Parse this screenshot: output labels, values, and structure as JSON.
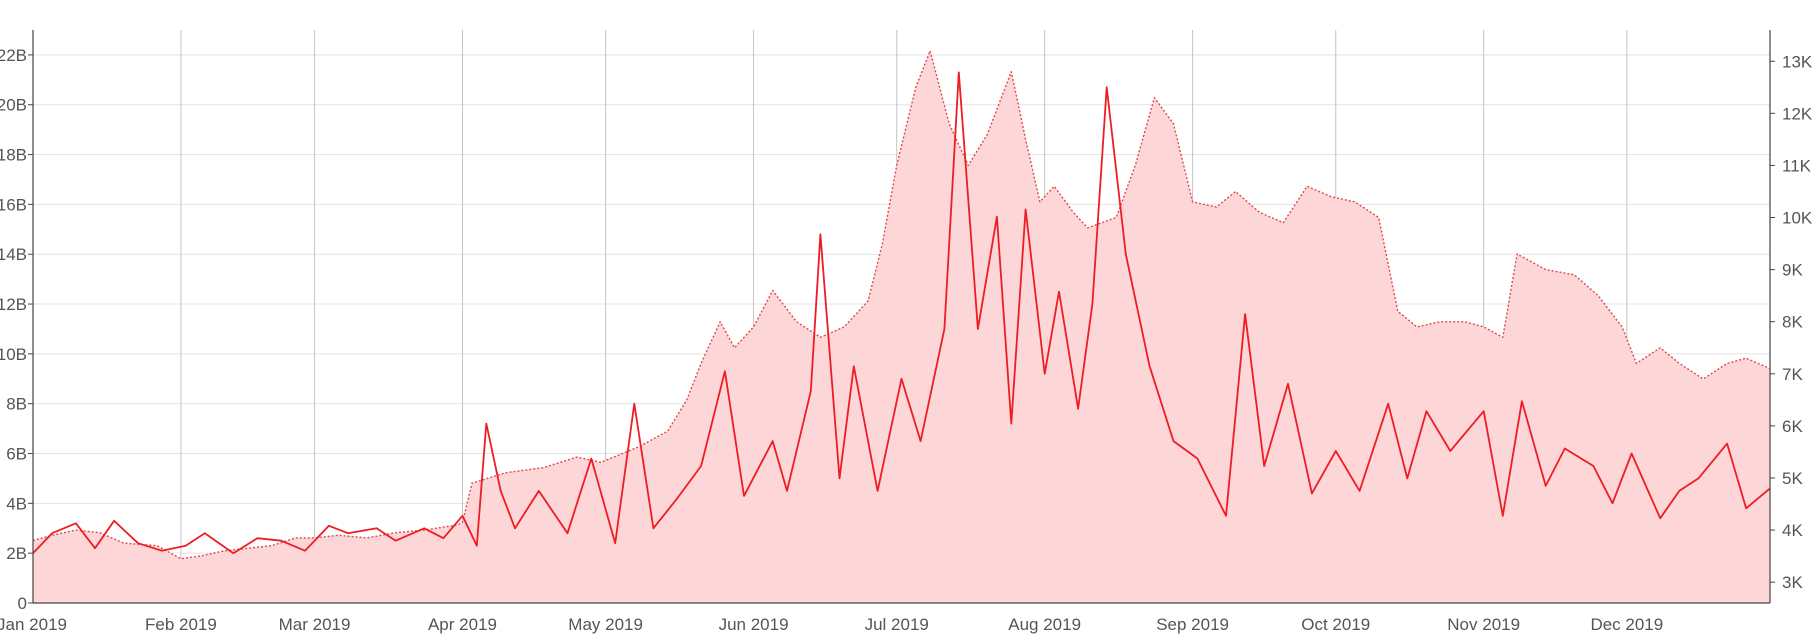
{
  "chart_data": {
    "type": "line",
    "title": "",
    "xlabel": "",
    "ylabel": "",
    "grid": true,
    "x_ticks": [
      "Jan 2019",
      "Feb 2019",
      "Mar 2019",
      "Apr 2019",
      "May 2019",
      "Jun 2019",
      "Jul 2019",
      "Aug 2019",
      "Sep 2019",
      "Oct 2019",
      "Nov 2019",
      "Dec 2019"
    ],
    "x_tick_dates": [
      "2019-01-01",
      "2019-02-01",
      "2019-03-01",
      "2019-04-01",
      "2019-05-01",
      "2019-06-01",
      "2019-07-01",
      "2019-08-01",
      "2019-09-01",
      "2019-10-01",
      "2019-11-01",
      "2019-12-01"
    ],
    "x_range": [
      "2019-01-01",
      "2019-12-31"
    ],
    "y_left": {
      "ylim": [
        0,
        23
      ],
      "ticks": [
        0,
        2,
        4,
        6,
        8,
        10,
        12,
        14,
        16,
        18,
        20,
        22
      ],
      "tick_labels": [
        "0",
        "2B",
        "4B",
        "6B",
        "8B",
        "10B",
        "12B",
        "14B",
        "16B",
        "18B",
        "20B",
        "22B"
      ]
    },
    "y_right": {
      "ylim": [
        2.6,
        13.6
      ],
      "ticks": [
        3,
        4,
        5,
        6,
        7,
        8,
        9,
        10,
        11,
        12,
        13
      ],
      "tick_labels": [
        "3K",
        "4K",
        "5K",
        "6K",
        "7K",
        "8K",
        "9K",
        "10K",
        "11K",
        "12K",
        "13K"
      ]
    },
    "series": [
      {
        "style": "dotted line with filled area",
        "axis": "right",
        "color": "#e0484a",
        "fill": "#fdd6d7",
        "points": [
          [
            "2019-01-01",
            3.8
          ],
          [
            "2019-01-05",
            3.9
          ],
          [
            "2019-01-10",
            4.0
          ],
          [
            "2019-01-15",
            3.95
          ],
          [
            "2019-01-20",
            3.75
          ],
          [
            "2019-01-27",
            3.7
          ],
          [
            "2019-02-01",
            3.45
          ],
          [
            "2019-02-05",
            3.5
          ],
          [
            "2019-02-10",
            3.6
          ],
          [
            "2019-02-15",
            3.65
          ],
          [
            "2019-02-20",
            3.7
          ],
          [
            "2019-02-25",
            3.85
          ],
          [
            "2019-03-01",
            3.85
          ],
          [
            "2019-03-06",
            3.9
          ],
          [
            "2019-03-12",
            3.85
          ],
          [
            "2019-03-18",
            3.95
          ],
          [
            "2019-03-24",
            4.0
          ],
          [
            "2019-03-31",
            4.1
          ],
          [
            "2019-04-01",
            4.15
          ],
          [
            "2019-04-03",
            4.9
          ],
          [
            "2019-04-10",
            5.1
          ],
          [
            "2019-04-18",
            5.2
          ],
          [
            "2019-04-25",
            5.4
          ],
          [
            "2019-04-30",
            5.3
          ],
          [
            "2019-05-08",
            5.6
          ],
          [
            "2019-05-14",
            5.9
          ],
          [
            "2019-05-18",
            6.5
          ],
          [
            "2019-05-21",
            7.2
          ],
          [
            "2019-05-25",
            8.0
          ],
          [
            "2019-05-28",
            7.5
          ],
          [
            "2019-06-01",
            7.9
          ],
          [
            "2019-06-05",
            8.6
          ],
          [
            "2019-06-10",
            8.0
          ],
          [
            "2019-06-15",
            7.7
          ],
          [
            "2019-06-20",
            7.9
          ],
          [
            "2019-06-25",
            8.4
          ],
          [
            "2019-06-28",
            9.5
          ],
          [
            "2019-07-01",
            11.0
          ],
          [
            "2019-07-05",
            12.5
          ],
          [
            "2019-07-08",
            13.2
          ],
          [
            "2019-07-12",
            11.8
          ],
          [
            "2019-07-16",
            11.0
          ],
          [
            "2019-07-20",
            11.6
          ],
          [
            "2019-07-25",
            12.8
          ],
          [
            "2019-07-28",
            11.5
          ],
          [
            "2019-07-31",
            10.3
          ],
          [
            "2019-08-03",
            10.6
          ],
          [
            "2019-08-07",
            10.1
          ],
          [
            "2019-08-10",
            9.8
          ],
          [
            "2019-08-16",
            10.0
          ],
          [
            "2019-08-20",
            11.0
          ],
          [
            "2019-08-24",
            12.3
          ],
          [
            "2019-08-28",
            11.8
          ],
          [
            "2019-09-01",
            10.3
          ],
          [
            "2019-09-06",
            10.2
          ],
          [
            "2019-09-10",
            10.5
          ],
          [
            "2019-09-15",
            10.1
          ],
          [
            "2019-09-20",
            9.9
          ],
          [
            "2019-09-25",
            10.6
          ],
          [
            "2019-09-30",
            10.4
          ],
          [
            "2019-10-05",
            10.3
          ],
          [
            "2019-10-10",
            10.0
          ],
          [
            "2019-10-14",
            8.2
          ],
          [
            "2019-10-18",
            7.9
          ],
          [
            "2019-10-23",
            8.0
          ],
          [
            "2019-10-28",
            8.0
          ],
          [
            "2019-11-01",
            7.9
          ],
          [
            "2019-11-05",
            7.7
          ],
          [
            "2019-11-08",
            9.3
          ],
          [
            "2019-11-14",
            9.0
          ],
          [
            "2019-11-20",
            8.9
          ],
          [
            "2019-11-25",
            8.5
          ],
          [
            "2019-11-30",
            7.9
          ],
          [
            "2019-12-03",
            7.2
          ],
          [
            "2019-12-08",
            7.5
          ],
          [
            "2019-12-12",
            7.2
          ],
          [
            "2019-12-17",
            6.9
          ],
          [
            "2019-12-22",
            7.2
          ],
          [
            "2019-12-26",
            7.3
          ],
          [
            "2019-12-31",
            7.1
          ]
        ]
      },
      {
        "style": "solid line",
        "axis": "left",
        "color": "#ee1c25",
        "points": [
          [
            "2019-01-01",
            2.0
          ],
          [
            "2019-01-05",
            2.8
          ],
          [
            "2019-01-10",
            3.2
          ],
          [
            "2019-01-14",
            2.2
          ],
          [
            "2019-01-18",
            3.3
          ],
          [
            "2019-01-23",
            2.4
          ],
          [
            "2019-01-28",
            2.1
          ],
          [
            "2019-02-02",
            2.3
          ],
          [
            "2019-02-06",
            2.8
          ],
          [
            "2019-02-12",
            2.0
          ],
          [
            "2019-02-17",
            2.6
          ],
          [
            "2019-02-22",
            2.5
          ],
          [
            "2019-02-27",
            2.1
          ],
          [
            "2019-03-04",
            3.1
          ],
          [
            "2019-03-08",
            2.8
          ],
          [
            "2019-03-14",
            3.0
          ],
          [
            "2019-03-18",
            2.5
          ],
          [
            "2019-03-24",
            3.0
          ],
          [
            "2019-03-28",
            2.6
          ],
          [
            "2019-04-01",
            3.5
          ],
          [
            "2019-04-04",
            2.3
          ],
          [
            "2019-04-06",
            7.2
          ],
          [
            "2019-04-09",
            4.5
          ],
          [
            "2019-04-12",
            3.0
          ],
          [
            "2019-04-17",
            4.5
          ],
          [
            "2019-04-23",
            2.8
          ],
          [
            "2019-04-28",
            5.8
          ],
          [
            "2019-05-03",
            2.4
          ],
          [
            "2019-05-07",
            8.0
          ],
          [
            "2019-05-11",
            3.0
          ],
          [
            "2019-05-16",
            4.2
          ],
          [
            "2019-05-21",
            5.5
          ],
          [
            "2019-05-26",
            9.3
          ],
          [
            "2019-05-30",
            4.3
          ],
          [
            "2019-06-05",
            6.5
          ],
          [
            "2019-06-08",
            4.5
          ],
          [
            "2019-06-13",
            8.5
          ],
          [
            "2019-06-15",
            14.8
          ],
          [
            "2019-06-19",
            5.0
          ],
          [
            "2019-06-22",
            9.5
          ],
          [
            "2019-06-27",
            4.5
          ],
          [
            "2019-07-02",
            9.0
          ],
          [
            "2019-07-06",
            6.5
          ],
          [
            "2019-07-11",
            11.0
          ],
          [
            "2019-07-14",
            21.3
          ],
          [
            "2019-07-18",
            11.0
          ],
          [
            "2019-07-22",
            15.5
          ],
          [
            "2019-07-25",
            7.2
          ],
          [
            "2019-07-28",
            15.8
          ],
          [
            "2019-08-01",
            9.2
          ],
          [
            "2019-08-04",
            12.5
          ],
          [
            "2019-08-08",
            7.8
          ],
          [
            "2019-08-11",
            12.0
          ],
          [
            "2019-08-14",
            20.7
          ],
          [
            "2019-08-18",
            14.0
          ],
          [
            "2019-08-23",
            9.5
          ],
          [
            "2019-08-28",
            6.5
          ],
          [
            "2019-09-02",
            5.8
          ],
          [
            "2019-09-08",
            3.5
          ],
          [
            "2019-09-12",
            11.6
          ],
          [
            "2019-09-16",
            5.5
          ],
          [
            "2019-09-21",
            8.8
          ],
          [
            "2019-09-26",
            4.4
          ],
          [
            "2019-10-01",
            6.1
          ],
          [
            "2019-10-06",
            4.5
          ],
          [
            "2019-10-12",
            8.0
          ],
          [
            "2019-10-16",
            5.0
          ],
          [
            "2019-10-20",
            7.7
          ],
          [
            "2019-10-25",
            6.1
          ],
          [
            "2019-11-01",
            7.7
          ],
          [
            "2019-11-05",
            3.5
          ],
          [
            "2019-11-09",
            8.1
          ],
          [
            "2019-11-14",
            4.7
          ],
          [
            "2019-11-18",
            6.2
          ],
          [
            "2019-11-24",
            5.5
          ],
          [
            "2019-11-28",
            4.0
          ],
          [
            "2019-12-02",
            6.0
          ],
          [
            "2019-12-08",
            3.4
          ],
          [
            "2019-12-12",
            4.5
          ],
          [
            "2019-12-16",
            5.0
          ],
          [
            "2019-12-22",
            6.4
          ],
          [
            "2019-12-26",
            3.8
          ],
          [
            "2019-12-31",
            4.6
          ]
        ]
      }
    ]
  }
}
